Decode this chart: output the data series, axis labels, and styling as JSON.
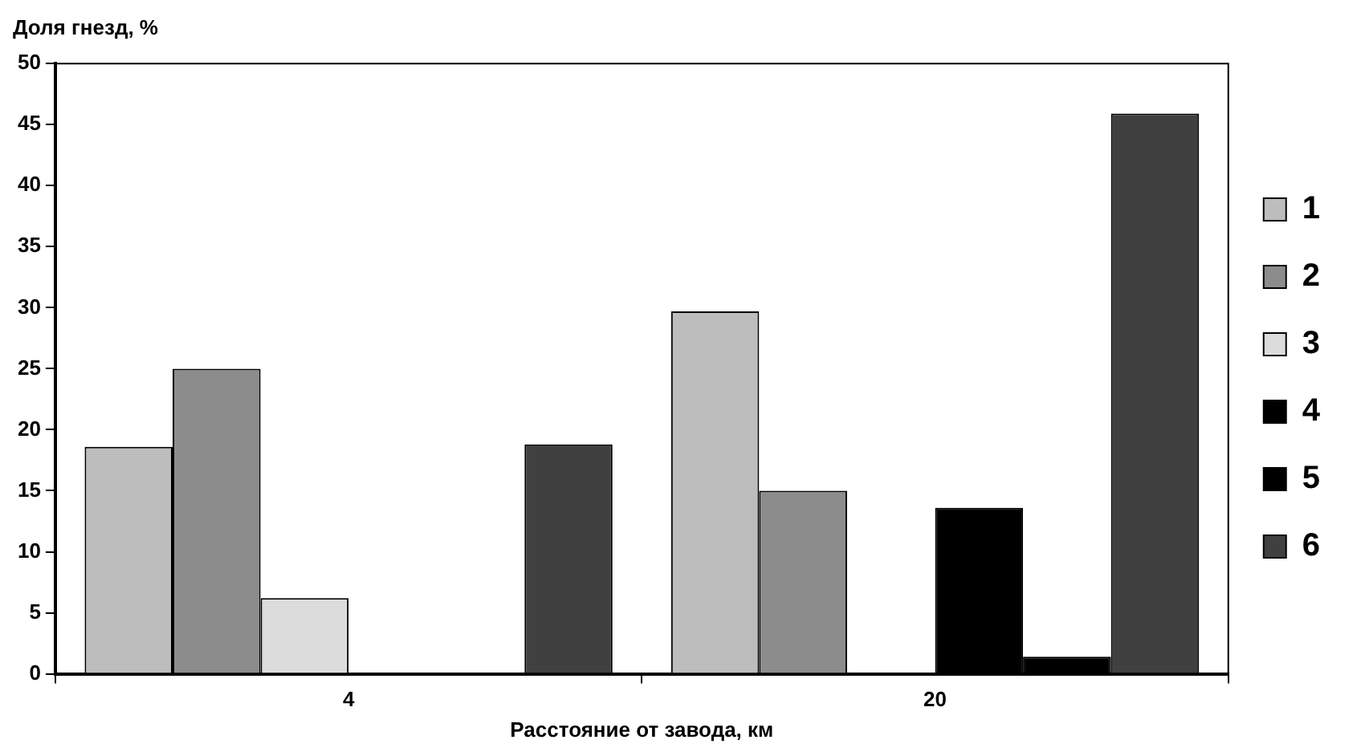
{
  "chart_data": {
    "type": "bar",
    "ylabel": "Доля гнезд, %",
    "xlabel": "Расстояние от завода, км",
    "categories": [
      "4",
      "20"
    ],
    "series": [
      {
        "name": "1",
        "color": "#bdbdbd",
        "values": [
          18.6,
          29.7
        ]
      },
      {
        "name": "2",
        "color": "#8c8c8c",
        "values": [
          25,
          15
        ]
      },
      {
        "name": "3",
        "color": "#dcdcdc",
        "values": [
          6.2,
          0
        ]
      },
      {
        "name": "4",
        "color": "#000000",
        "values": [
          0,
          13.6
        ]
      },
      {
        "name": "5",
        "color": "#000000",
        "values": [
          0,
          1.4
        ]
      },
      {
        "name": "6",
        "color": "#404040",
        "values": [
          18.8,
          45.9
        ]
      }
    ],
    "ylim": [
      0,
      50
    ],
    "yticks": [
      0,
      5,
      10,
      15,
      20,
      25,
      30,
      35,
      40,
      45,
      50
    ],
    "grid": false,
    "legend": "right"
  }
}
